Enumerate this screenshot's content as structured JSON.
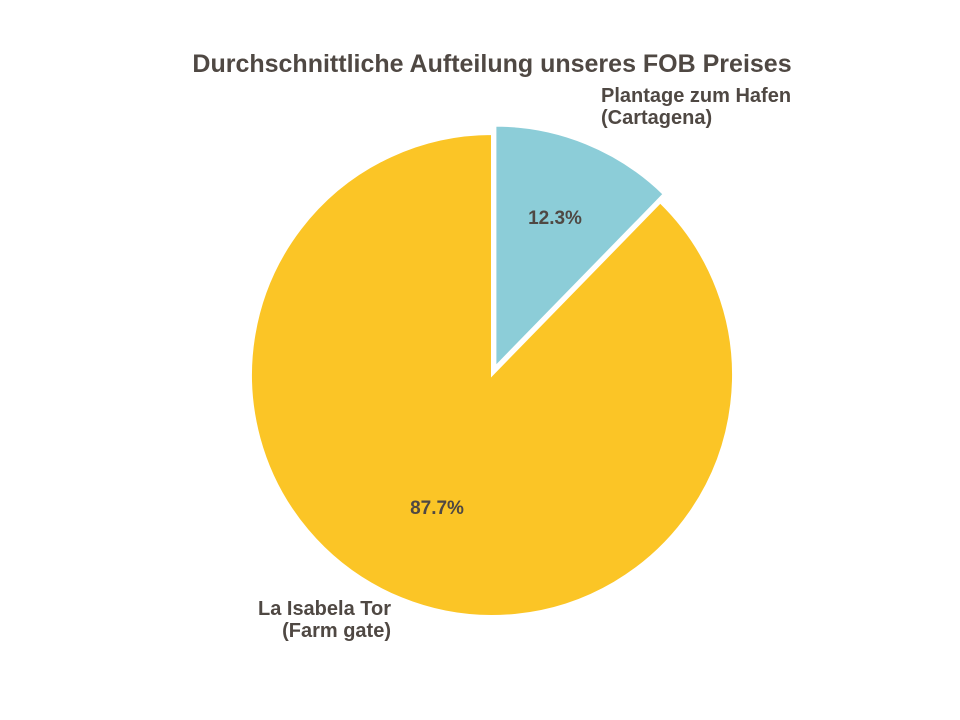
{
  "chart_data": {
    "type": "pie",
    "title": "Durchschnittliche Aufteilung unseres FOB Preises",
    "slices": [
      {
        "name": "Plantage zum Hafen (Cartagena)",
        "label_lines": [
          "Plantage zum Hafen",
          "(Cartagena)"
        ],
        "value": 12.3,
        "value_label": "12.3%",
        "color": "#8ccdd8",
        "exploded": true
      },
      {
        "name": "La Isabela Tor (Farm gate)",
        "label_lines": [
          "La Isabela Tor",
          "(Farm gate)"
        ],
        "value": 87.7,
        "value_label": "87.7%",
        "color": "#fbc526",
        "exploded": false
      }
    ],
    "start_angle": "top",
    "direction": "clockwise",
    "legend": "none"
  }
}
